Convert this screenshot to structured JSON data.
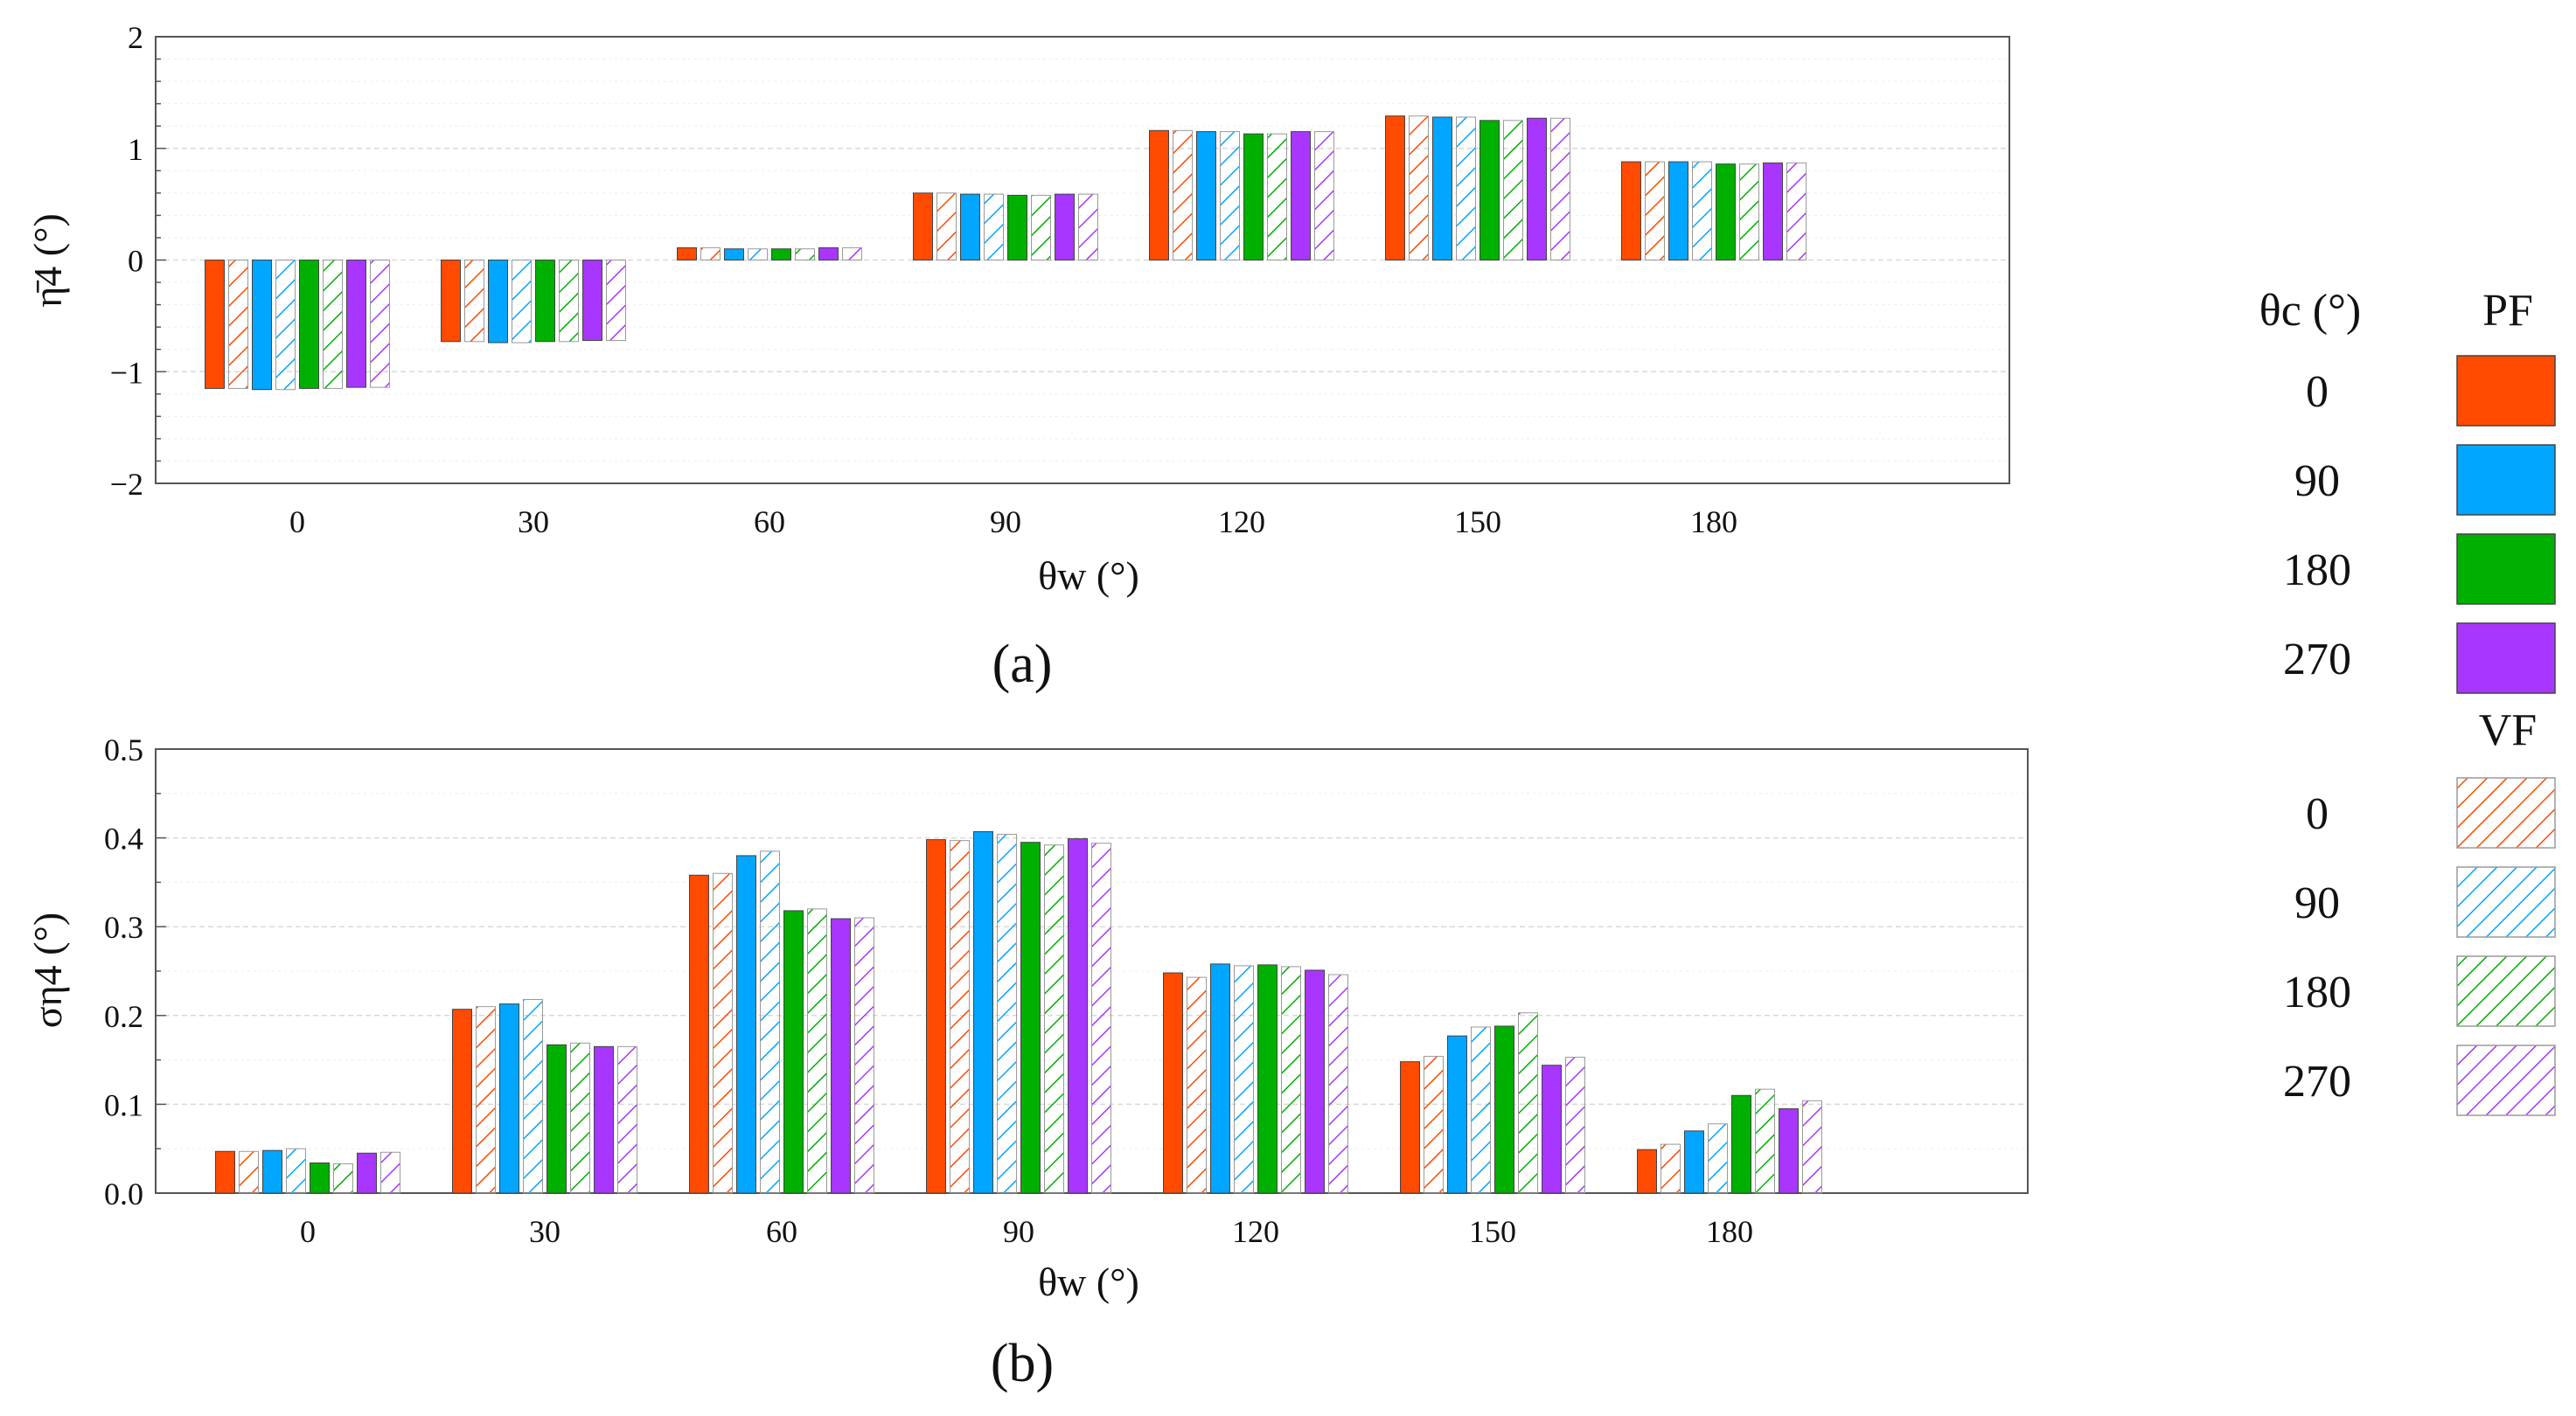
{
  "chart_data": [
    {
      "panel": "(a)",
      "type": "bar",
      "ylabel": "η̄4 (°)",
      "xlabel": "θw (°)",
      "categories": [
        "0",
        "30",
        "60",
        "90",
        "120",
        "150",
        "180"
      ],
      "yticks": [
        "2",
        "1",
        "0",
        "−1",
        "−2"
      ],
      "ylim": [
        -2,
        2
      ],
      "series": [
        {
          "name": "PF 0",
          "values": [
            -1.15,
            -0.73,
            0.11,
            0.6,
            1.16,
            1.29,
            0.88
          ]
        },
        {
          "name": "VF 0",
          "values": [
            -1.15,
            -0.73,
            0.11,
            0.6,
            1.16,
            1.29,
            0.88
          ]
        },
        {
          "name": "PF 90",
          "values": [
            -1.16,
            -0.74,
            0.1,
            0.59,
            1.15,
            1.28,
            0.88
          ]
        },
        {
          "name": "VF 90",
          "values": [
            -1.16,
            -0.74,
            0.1,
            0.59,
            1.15,
            1.28,
            0.88
          ]
        },
        {
          "name": "PF 180",
          "values": [
            -1.15,
            -0.73,
            0.1,
            0.58,
            1.13,
            1.25,
            0.86
          ]
        },
        {
          "name": "VF 180",
          "values": [
            -1.15,
            -0.73,
            0.1,
            0.58,
            1.13,
            1.25,
            0.86
          ]
        },
        {
          "name": "PF 270",
          "values": [
            -1.14,
            -0.72,
            0.11,
            0.59,
            1.15,
            1.27,
            0.87
          ]
        },
        {
          "name": "VF 270",
          "values": [
            -1.14,
            -0.72,
            0.11,
            0.59,
            1.15,
            1.27,
            0.87
          ]
        }
      ]
    },
    {
      "panel": "(b)",
      "type": "bar",
      "ylabel": "ση4 (°)",
      "xlabel": "θw (°)",
      "categories": [
        "0",
        "30",
        "60",
        "90",
        "120",
        "150",
        "180"
      ],
      "yticks": [
        "0.5",
        "0.4",
        "0.3",
        "0.2",
        "0.1",
        "0.0"
      ],
      "ylim": [
        0,
        0.5
      ],
      "series": [
        {
          "name": "PF 0",
          "values": [
            0.047,
            0.207,
            0.358,
            0.398,
            0.248,
            0.148,
            0.049
          ]
        },
        {
          "name": "VF 0",
          "values": [
            0.047,
            0.21,
            0.36,
            0.397,
            0.243,
            0.154,
            0.055
          ]
        },
        {
          "name": "PF 90",
          "values": [
            0.048,
            0.213,
            0.38,
            0.407,
            0.258,
            0.177,
            0.07
          ]
        },
        {
          "name": "VF 90",
          "values": [
            0.05,
            0.218,
            0.385,
            0.404,
            0.256,
            0.187,
            0.078
          ]
        },
        {
          "name": "PF 180",
          "values": [
            0.034,
            0.167,
            0.318,
            0.395,
            0.257,
            0.188,
            0.11
          ]
        },
        {
          "name": "VF 180",
          "values": [
            0.033,
            0.169,
            0.32,
            0.392,
            0.255,
            0.203,
            0.117
          ]
        },
        {
          "name": "PF 270",
          "values": [
            0.045,
            0.165,
            0.309,
            0.399,
            0.251,
            0.144,
            0.095
          ]
        },
        {
          "name": "VF 270",
          "values": [
            0.046,
            0.165,
            0.31,
            0.394,
            0.246,
            0.153,
            0.104
          ]
        }
      ]
    }
  ],
  "colors": {
    "0": "#ff4a00",
    "90": "#00a6ff",
    "180": "#00b000",
    "270": "#a836ff"
  },
  "legend": {
    "header_label": "θc (°)",
    "pf_title": "PF",
    "vf_title": "VF",
    "pf_entries": [
      "0",
      "90",
      "180",
      "270"
    ],
    "vf_entries": [
      "0",
      "90",
      "180",
      "270"
    ]
  }
}
